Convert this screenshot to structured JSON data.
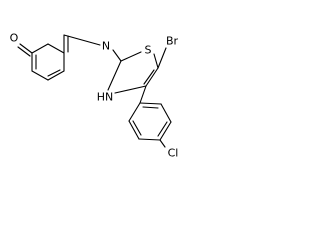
{
  "atoms": {
    "oxygen": "O",
    "imine_nitrogen": "N",
    "sulfur": "S",
    "bromine": "Br",
    "ring_nh": "HN",
    "chlorine": "Cl"
  }
}
